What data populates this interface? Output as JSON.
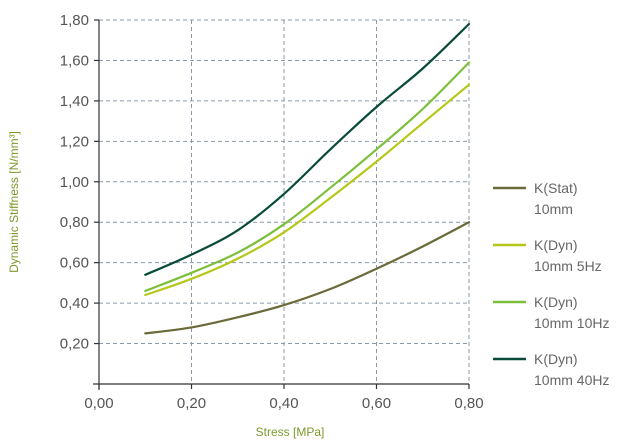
{
  "chart_data": {
    "type": "line",
    "title": "",
    "xlabel": "Stress [MPa]",
    "ylabel": "Dynamic Stiffness [N/mm³]",
    "xlim": [
      0.0,
      0.8
    ],
    "ylim": [
      0.0,
      1.8
    ],
    "x_ticks": [
      "0,00",
      "0,20",
      "0,40",
      "0,60",
      "0,80"
    ],
    "y_ticks": [
      "0,20",
      "0,40",
      "0,60",
      "0,80",
      "1,00",
      "1,20",
      "1,40",
      "1,60",
      "1,80"
    ],
    "grid": true,
    "legend_position": "right",
    "series": [
      {
        "name": "K(Stat)",
        "name_line2": "10mm",
        "color": "#6b6a3a",
        "x": [
          0.1,
          0.2,
          0.3,
          0.4,
          0.5,
          0.6,
          0.7,
          0.8
        ],
        "y": [
          0.25,
          0.28,
          0.33,
          0.39,
          0.47,
          0.57,
          0.68,
          0.8
        ]
      },
      {
        "name": "K(Dyn)",
        "name_line2": "10mm 5Hz",
        "color": "#b5c81a",
        "x": [
          0.1,
          0.2,
          0.3,
          0.4,
          0.5,
          0.6,
          0.7,
          0.8
        ],
        "y": [
          0.44,
          0.52,
          0.62,
          0.75,
          0.92,
          1.1,
          1.29,
          1.48
        ]
      },
      {
        "name": "K(Dyn)",
        "name_line2": "10mm 10Hz",
        "color": "#7cbf3a",
        "x": [
          0.1,
          0.2,
          0.3,
          0.4,
          0.5,
          0.6,
          0.7,
          0.8
        ],
        "y": [
          0.46,
          0.55,
          0.65,
          0.79,
          0.97,
          1.16,
          1.36,
          1.59
        ]
      },
      {
        "name": "K(Dyn)",
        "name_line2": "10mm 40Hz",
        "color": "#0a4a3a",
        "x": [
          0.1,
          0.2,
          0.3,
          0.4,
          0.5,
          0.6,
          0.7,
          0.8
        ],
        "y": [
          0.54,
          0.64,
          0.76,
          0.94,
          1.16,
          1.37,
          1.56,
          1.78
        ]
      }
    ],
    "colors": {
      "axis_title": "#7a9a2a",
      "tick_label": "#555555",
      "legend_text": "#666666",
      "grid": "#8a9aa6"
    }
  }
}
